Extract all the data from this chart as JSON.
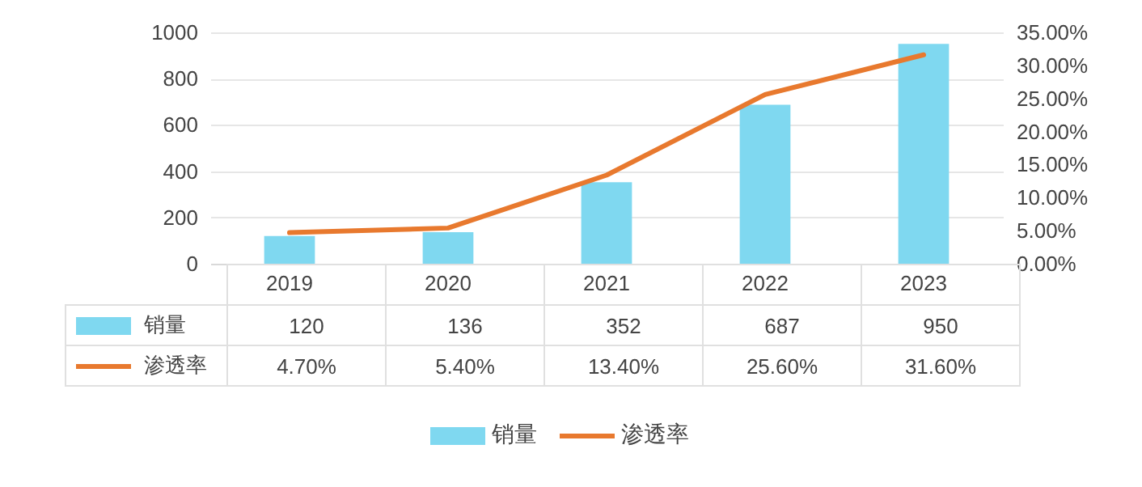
{
  "chart_data": {
    "type": "bar",
    "categories": [
      "2019",
      "2020",
      "2021",
      "2022",
      "2023"
    ],
    "series": [
      {
        "name": "销量",
        "color": "#7fd8f0",
        "values": [
          120,
          136,
          352,
          687,
          950
        ],
        "value_labels": [
          "120",
          "136",
          "352",
          "687",
          "950"
        ]
      },
      {
        "name": "渗透率",
        "type": "line",
        "axis": "y2",
        "color": "#e8792e",
        "values": [
          4.7,
          5.4,
          13.4,
          25.6,
          31.6
        ],
        "value_labels": [
          "4.70%",
          "5.40%",
          "13.40%",
          "25.60%",
          "31.60%"
        ]
      }
    ],
    "ylim": [
      0,
      1000
    ],
    "yticks": [
      0,
      200,
      400,
      600,
      800,
      1000
    ],
    "y2lim": [
      0,
      35
    ],
    "y2ticks": [
      {
        "value": 0,
        "label": "0.00%"
      },
      {
        "value": 5,
        "label": "5.00%"
      },
      {
        "value": 10,
        "label": "10.00%"
      },
      {
        "value": 15,
        "label": "15.00%"
      },
      {
        "value": 20,
        "label": "20.00%"
      },
      {
        "value": 25,
        "label": "25.00%"
      },
      {
        "value": 30,
        "label": "30.00%"
      },
      {
        "value": 35,
        "label": "35.00%"
      }
    ],
    "grid": "y",
    "legend": "bottom",
    "marker": "none",
    "line_style": "solid"
  }
}
